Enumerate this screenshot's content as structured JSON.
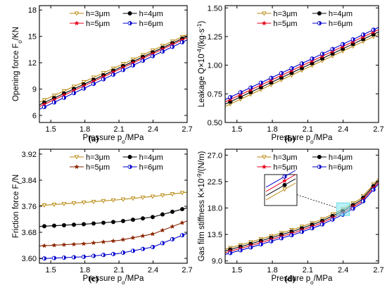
{
  "chart_data": [
    {
      "type": "line",
      "panel_label": "(a)",
      "ylabel": "Opening force F_o/KN",
      "xlabel": "Pressure p_o/MPa",
      "xlim": [
        1.4,
        2.7
      ],
      "ylim": [
        5.2,
        18.5
      ],
      "xticks": [
        "1.5",
        "1.8",
        "2.1",
        "2.4",
        "2.7"
      ],
      "xtick_values": [
        1.5,
        1.8,
        2.1,
        2.4,
        2.7
      ],
      "yticks": [
        "6",
        "9",
        "12",
        "15",
        "18"
      ],
      "ytick_values": [
        6,
        9,
        12,
        15,
        18
      ],
      "legend_columns": 2,
      "series": [
        {
          "name": "h=3μm",
          "color": "#b8860b",
          "marker": "tri-down",
          "x": [
            1.4,
            2.7
          ],
          "y": [
            7.5,
            15.2
          ]
        },
        {
          "name": "h=4μm",
          "color": "#000000",
          "marker": "circle",
          "x": [
            1.4,
            2.7
          ],
          "y": [
            7.2,
            15.0
          ]
        },
        {
          "name": "h=5μm",
          "color": "#e8001c",
          "marker": "star",
          "x": [
            1.4,
            2.7
          ],
          "y": [
            7.0,
            14.85
          ]
        },
        {
          "name": "h=6μm",
          "color": "#0000cc",
          "marker": "half-circle",
          "x": [
            1.4,
            2.7
          ],
          "y": [
            6.7,
            14.6
          ]
        }
      ]
    },
    {
      "type": "line",
      "panel_label": "(b)",
      "ylabel": "Leakage Q×10^-4/(kg·s^-1)",
      "xlabel": "Pressure p_o/MPa",
      "xlim": [
        1.4,
        2.7
      ],
      "ylim": [
        0.5,
        1.52
      ],
      "xticks": [
        "1.5",
        "1.8",
        "2.1",
        "2.4",
        "2.7"
      ],
      "xtick_values": [
        1.5,
        1.8,
        2.1,
        2.4,
        2.7
      ],
      "yticks": [
        "0.50",
        "0.75",
        "1.00",
        "1.25",
        "1.50"
      ],
      "ytick_values": [
        0.5,
        0.75,
        1.0,
        1.25,
        1.5
      ],
      "legend_columns": 2,
      "series": [
        {
          "name": "h=3μm",
          "color": "#b8860b",
          "marker": "tri-down",
          "x": [
            1.4,
            2.7
          ],
          "y": [
            0.64,
            1.27
          ]
        },
        {
          "name": "h=4μm",
          "color": "#000000",
          "marker": "circle",
          "x": [
            1.4,
            2.7
          ],
          "y": [
            0.66,
            1.29
          ]
        },
        {
          "name": "h=5μm",
          "color": "#e8001c",
          "marker": "star",
          "x": [
            1.4,
            2.7
          ],
          "y": [
            0.68,
            1.31
          ]
        },
        {
          "name": "h=6μm",
          "color": "#0000cc",
          "marker": "half-circle",
          "x": [
            1.4,
            2.7
          ],
          "y": [
            0.7,
            1.33
          ]
        }
      ]
    },
    {
      "type": "line",
      "panel_label": "(c)",
      "ylabel": "Friction force F_f/N",
      "xlabel": "Pressure p_o/MPa",
      "xlim": [
        1.4,
        2.7
      ],
      "ylim": [
        3.585,
        3.935
      ],
      "xticks": [
        "1.5",
        "1.8",
        "2.1",
        "2.4",
        "2.7"
      ],
      "xtick_values": [
        1.5,
        1.8,
        2.1,
        2.4,
        2.7
      ],
      "yticks": [
        "3.60",
        "3.68",
        "3.76",
        "3.84",
        "3.92"
      ],
      "ytick_values": [
        3.6,
        3.68,
        3.76,
        3.84,
        3.92
      ],
      "legend_columns": 2,
      "series": [
        {
          "name": "h=3μm",
          "color": "#b8860b",
          "marker": "tri-down",
          "x": [
            1.4,
            1.8,
            2.1,
            2.4,
            2.7
          ],
          "y": [
            3.762,
            3.772,
            3.78,
            3.79,
            3.803
          ]
        },
        {
          "name": "h=4μm",
          "color": "#000000",
          "marker": "circle",
          "x": [
            1.4,
            1.8,
            2.1,
            2.4,
            2.7
          ],
          "y": [
            3.698,
            3.705,
            3.713,
            3.727,
            3.755
          ]
        },
        {
          "name": "h=5μm",
          "color": "#8b2500",
          "marker": "star",
          "x": [
            1.4,
            1.8,
            2.1,
            2.4,
            2.7
          ],
          "y": [
            3.638,
            3.645,
            3.655,
            3.675,
            3.715
          ]
        },
        {
          "name": "h=6μm",
          "color": "#0000cc",
          "marker": "half-circle",
          "x": [
            1.4,
            1.8,
            2.1,
            2.4,
            2.7
          ],
          "y": [
            3.599,
            3.605,
            3.615,
            3.635,
            3.677
          ]
        }
      ]
    },
    {
      "type": "line",
      "panel_label": "(d)",
      "ylabel": "Gas film stiffness K×10^-9/(N/m)",
      "xlabel": "Pressure p_o/MPa",
      "xlim": [
        1.4,
        2.7
      ],
      "ylim": [
        8.6,
        28.0
      ],
      "xticks": [
        "1.5",
        "1.8",
        "2.1",
        "2.4",
        "2.7"
      ],
      "xtick_values": [
        1.5,
        1.8,
        2.1,
        2.4,
        2.7
      ],
      "yticks": [
        "9.0",
        "13.5",
        "18.0",
        "22.5",
        "27.0"
      ],
      "ytick_values": [
        9.0,
        13.5,
        18.0,
        22.5,
        27.0
      ],
      "legend_columns": 2,
      "series": [
        {
          "name": "h=3μm",
          "color": "#b8860b",
          "marker": "tri-down",
          "x": [
            1.4,
            1.6,
            1.8,
            2.0,
            2.2,
            2.4,
            2.55,
            2.7
          ],
          "y": [
            11.0,
            12.1,
            13.3,
            14.5,
            15.9,
            17.8,
            19.6,
            23.0
          ]
        },
        {
          "name": "h=4μm",
          "color": "#000000",
          "marker": "circle",
          "x": [
            1.4,
            1.6,
            1.8,
            2.0,
            2.2,
            2.4,
            2.55,
            2.7
          ],
          "y": [
            10.7,
            11.8,
            13.0,
            14.2,
            15.6,
            17.5,
            19.3,
            22.7
          ]
        },
        {
          "name": "h=5μm",
          "color": "#e8001c",
          "marker": "star",
          "x": [
            1.4,
            1.6,
            1.8,
            2.0,
            2.2,
            2.4,
            2.55,
            2.7
          ],
          "y": [
            10.4,
            11.5,
            12.7,
            13.9,
            15.3,
            17.2,
            19.0,
            22.4
          ]
        },
        {
          "name": "h=6μm",
          "color": "#0000cc",
          "marker": "half-circle",
          "x": [
            1.4,
            1.6,
            1.8,
            2.0,
            2.2,
            2.4,
            2.55,
            2.7
          ],
          "y": [
            10.1,
            11.2,
            12.4,
            13.6,
            15.0,
            16.9,
            18.7,
            22.1
          ]
        }
      ],
      "zoom_inset": {
        "x_center": 2.4,
        "y_center": 17.8
      }
    }
  ]
}
